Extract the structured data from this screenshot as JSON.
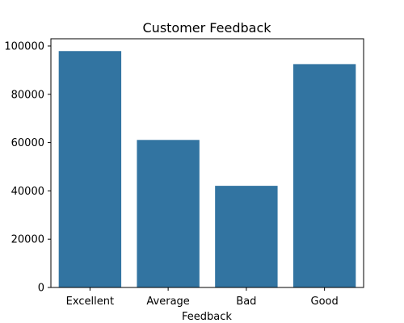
{
  "chart_data": {
    "type": "bar",
    "title": "Customer Feedback",
    "xlabel": "Feedback",
    "ylabel": "",
    "categories": [
      "Excellent",
      "Average",
      "Bad",
      "Good"
    ],
    "values": [
      97900,
      61100,
      42100,
      92500
    ],
    "ylim": [
      0,
      103000
    ],
    "yticks": [
      0,
      20000,
      40000,
      60000,
      80000,
      100000
    ],
    "ytick_labels": [
      "0",
      "20000",
      "40000",
      "60000",
      "80000",
      "100000"
    ],
    "bar_color": "#3274a1",
    "grid": false,
    "legend": "none"
  }
}
